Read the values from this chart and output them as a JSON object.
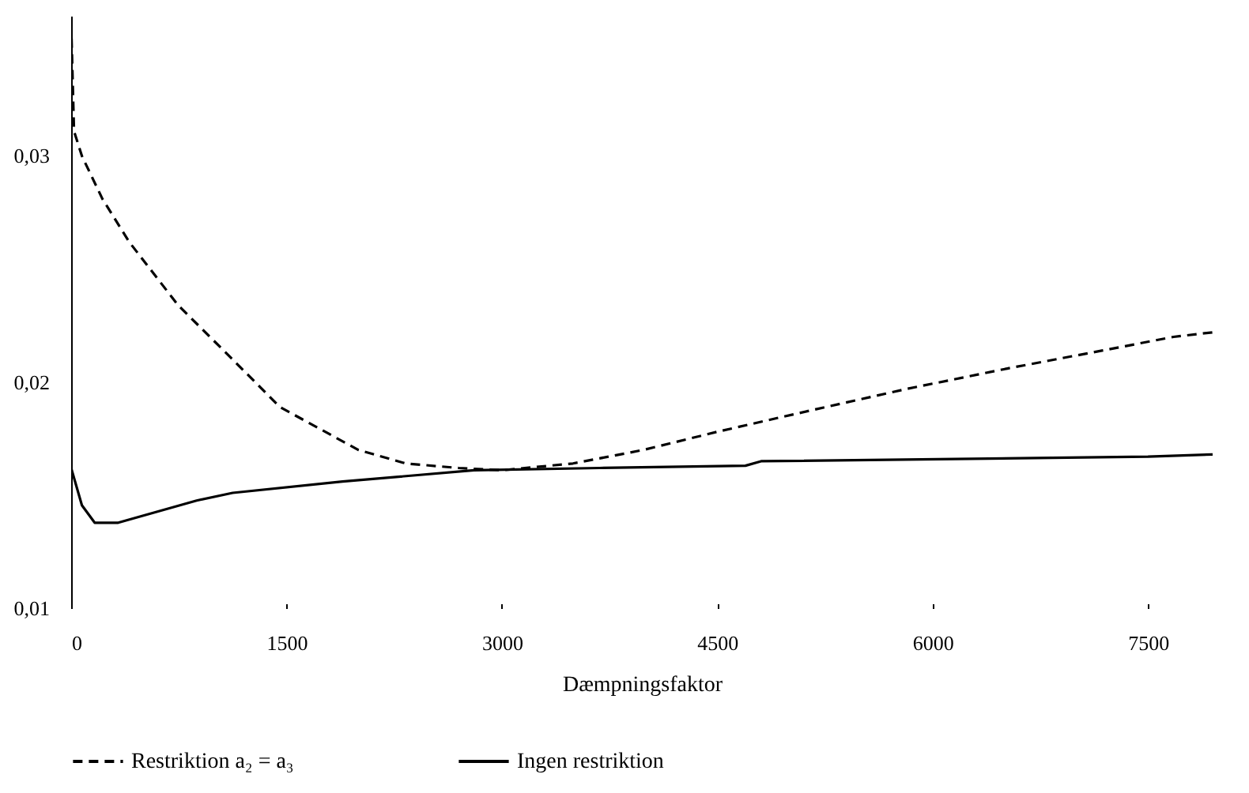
{
  "chart_data": {
    "type": "line",
    "xlabel": "Dæmpningsfaktor",
    "xlim": [
      0,
      7950
    ],
    "xticks": [
      0,
      1500,
      3000,
      4500,
      6000,
      7500
    ],
    "ylim": [
      0.01,
      0.0362
    ],
    "yticks": [
      {
        "value": 0.01,
        "label": "0,01"
      },
      {
        "value": 0.02,
        "label": "0,02"
      },
      {
        "value": 0.03,
        "label": "0,03"
      }
    ],
    "grid": false,
    "legend": "bottom",
    "marker": "none",
    "series": [
      {
        "name": "Restriktion a₂ = a₃",
        "color": "#000000",
        "line_style": "dashed",
        "x": [
          0,
          20,
          75,
          218,
          404,
          745,
          1125,
          1453,
          2000,
          2330,
          2700,
          3000,
          3495,
          3986,
          4499,
          5188,
          5822,
          6520,
          7186,
          7678,
          7950
        ],
        "values": [
          0.0359,
          0.0311,
          0.03,
          0.0281,
          0.0262,
          0.0234,
          0.021,
          0.0189,
          0.017,
          0.0164,
          0.0162,
          0.0161,
          0.0164,
          0.017,
          0.0178,
          0.0188,
          0.0197,
          0.0206,
          0.0214,
          0.022,
          0.0222
        ]
      },
      {
        "name": "Ingen restriktion",
        "color": "#000000",
        "line_style": "solid",
        "x": [
          0,
          0,
          75,
          164,
          328,
          874,
          1125,
          1890,
          2806,
          3680,
          4696,
          4805,
          7500,
          7950
        ],
        "values": [
          0.0241,
          0.0162,
          0.01455,
          0.01378,
          0.01378,
          0.01476,
          0.0151,
          0.0156,
          0.0161,
          0.0162,
          0.0163,
          0.0165,
          0.0167,
          0.0168
        ]
      }
    ]
  }
}
